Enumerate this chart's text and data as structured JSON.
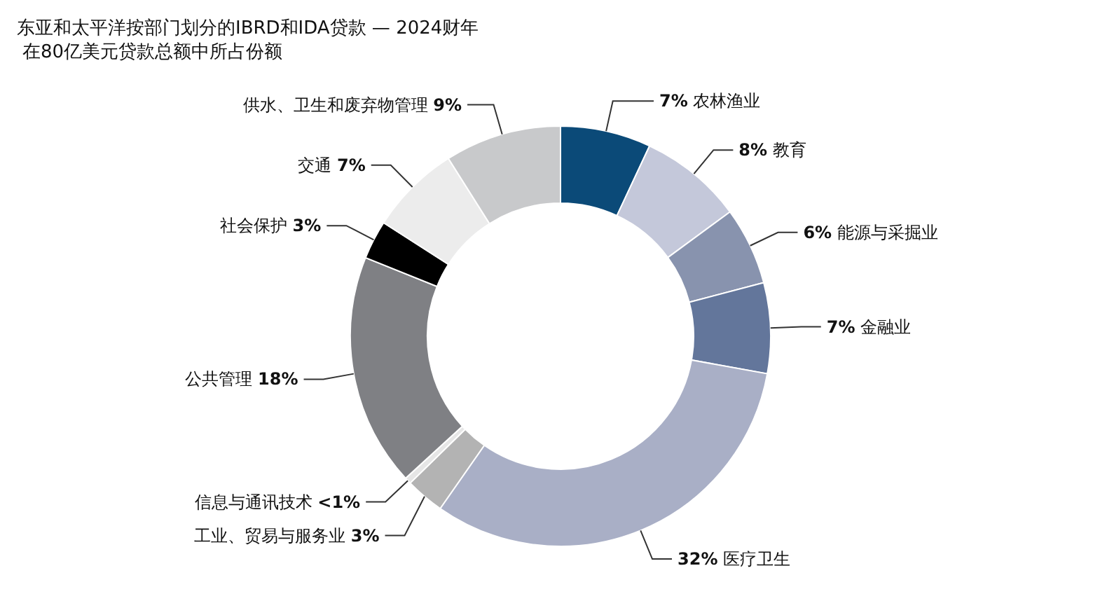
{
  "chart_data": {
    "type": "donut",
    "title": "东亚和太平洋按部门划分的IBRD和IDA贷款 — 2024财年",
    "subtitle": "在80亿美元贷款总额中所占份额",
    "categories": [
      "农林渔业",
      "教育",
      "能源与采掘业",
      "金融业",
      "医疗卫生",
      "工业、贸易与服务业",
      "信息与通讯技术",
      "公共管理",
      "社会保护",
      "交通",
      "供水、卫生和废弃物管理"
    ],
    "values": [
      7,
      8,
      6,
      7,
      32,
      3,
      0.5,
      18,
      3,
      7,
      9
    ],
    "value_labels": [
      "7%",
      "8%",
      "6%",
      "7%",
      "32%",
      "3%",
      "<1%",
      "18%",
      "3%",
      "7%",
      "9%"
    ],
    "colors": [
      "#0b4a78",
      "#c4c8da",
      "#8893ae",
      "#63769b",
      "#a9afc6",
      "#b3b3b3",
      "#e6e6e6",
      "#7f8084",
      "#000000",
      "#ececec",
      "#c8c9cb"
    ]
  }
}
